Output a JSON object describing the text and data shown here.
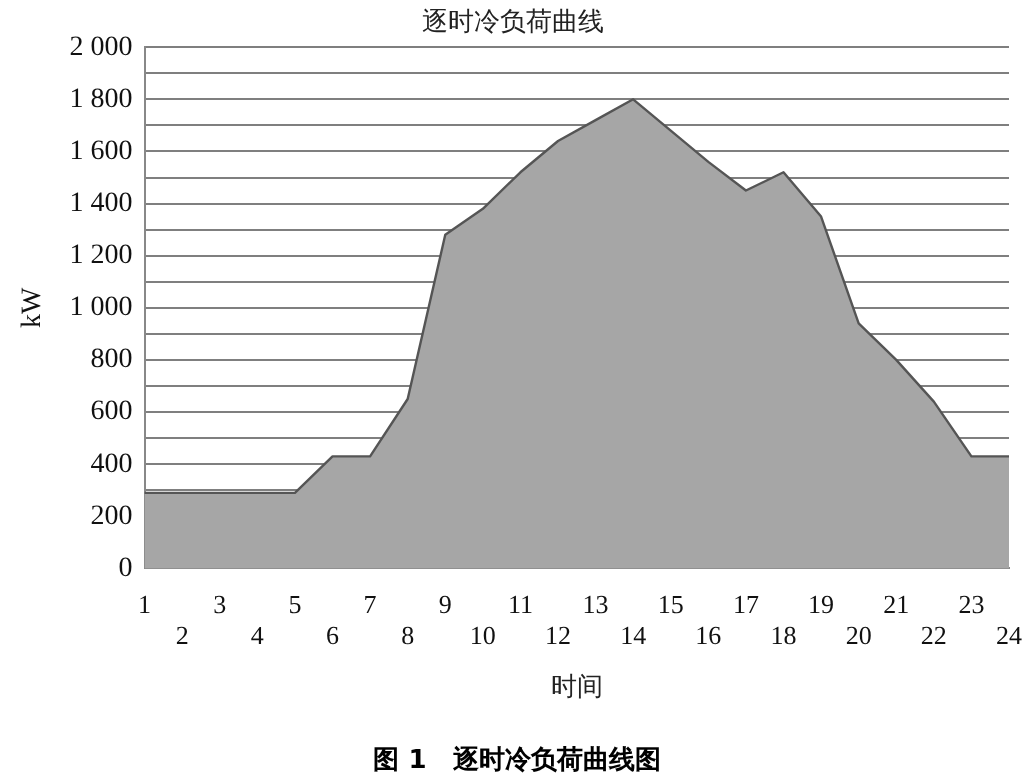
{
  "chart_data": {
    "type": "area",
    "title": "逐时冷负荷曲线",
    "xlabel": "时间",
    "ylabel": "kW",
    "categories": [
      "1",
      "2",
      "3",
      "4",
      "5",
      "6",
      "7",
      "8",
      "9",
      "10",
      "11",
      "12",
      "13",
      "14",
      "15",
      "16",
      "17",
      "18",
      "19",
      "20",
      "21",
      "22",
      "23",
      "24"
    ],
    "series": [
      {
        "color": "#a6a6a6",
        "values": [
          290,
          290,
          290,
          290,
          290,
          430,
          430,
          650,
          1280,
          1380,
          1520,
          1640,
          1720,
          1800,
          1680,
          1560,
          1450,
          1520,
          1350,
          940,
          800,
          640,
          430,
          430
        ]
      }
    ],
    "ylim": [
      0,
      2000
    ],
    "yticks": [
      0,
      {
        "value": 200,
        "label": "200"
      },
      {
        "value": 300,
        "label": null
      },
      400,
      {
        "value": 500,
        "label": null
      },
      600,
      {
        "value": 700,
        "label": null
      },
      800,
      {
        "value": 900,
        "label": null
      },
      {
        "value": 1000,
        "label": "1 000"
      },
      {
        "value": 1100,
        "label": null
      },
      {
        "value": 1200,
        "label": "1 200"
      },
      {
        "value": 1300,
        "label": null
      },
      {
        "value": 1400,
        "label": "1 400"
      },
      {
        "value": 1500,
        "label": null
      },
      {
        "value": 1600,
        "label": "1 600"
      },
      {
        "value": 1700,
        "label": null
      },
      {
        "value": 1800,
        "label": "1 800"
      },
      {
        "value": 1900,
        "label": null
      },
      {
        "value": 2000,
        "label": "2 000"
      }
    ],
    "grid": "y",
    "annotations": [
      "图 1　逐时冷负荷曲线图"
    ]
  }
}
